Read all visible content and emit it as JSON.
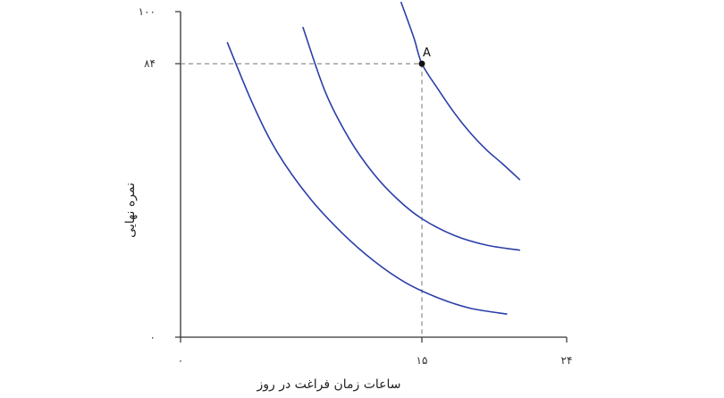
{
  "chart_data": {
    "type": "line",
    "title": "",
    "xlabel": "ساعات زمان فراغت در روز",
    "ylabel": "نمره نهایی",
    "xlim": [
      0,
      24
    ],
    "ylim": [
      0,
      100
    ],
    "x_ticks": [
      {
        "value": 0,
        "label": "۰"
      },
      {
        "value": 15,
        "label": "۱۵"
      },
      {
        "value": 24,
        "label": "۲۴"
      }
    ],
    "y_ticks": [
      {
        "value": 0,
        "label": "۰"
      },
      {
        "value": 84,
        "label": "۸۴"
      },
      {
        "value": 100,
        "label": "۱۰۰"
      }
    ],
    "grid": false,
    "series": [
      {
        "points": [
          [
            2.9,
            90.6
          ],
          [
            4.5,
            71.5
          ],
          [
            6.0,
            56.9
          ],
          [
            8.0,
            42.9
          ],
          [
            10.0,
            32.2
          ],
          [
            12.0,
            23.5
          ],
          [
            14.0,
            16.7
          ],
          [
            16.0,
            12.1
          ],
          [
            18.0,
            8.9
          ],
          [
            20.3,
            7.1
          ]
        ],
        "color": "#2b3fa8"
      },
      {
        "points": [
          [
            7.6,
            95.3
          ],
          [
            9.0,
            75.3
          ],
          [
            10.5,
            60.8
          ],
          [
            12.0,
            50.2
          ],
          [
            13.5,
            42.3
          ],
          [
            15.0,
            36.4
          ],
          [
            17.0,
            31.3
          ],
          [
            19.0,
            28.3
          ],
          [
            21.1,
            26.7
          ]
        ],
        "color": "#2b3fa8"
      },
      {
        "points": [
          [
            13.7,
            103.0
          ],
          [
            14.5,
            92.0
          ],
          [
            15.0,
            84.0
          ],
          [
            16.0,
            76.2
          ],
          [
            17.0,
            69.0
          ],
          [
            18.0,
            62.8
          ],
          [
            19.0,
            57.6
          ],
          [
            20.0,
            53.3
          ],
          [
            21.1,
            48.3
          ]
        ],
        "color": "#2b3fa8"
      }
    ],
    "highlight_point": {
      "label": "A",
      "x": 15,
      "y": 84
    }
  }
}
